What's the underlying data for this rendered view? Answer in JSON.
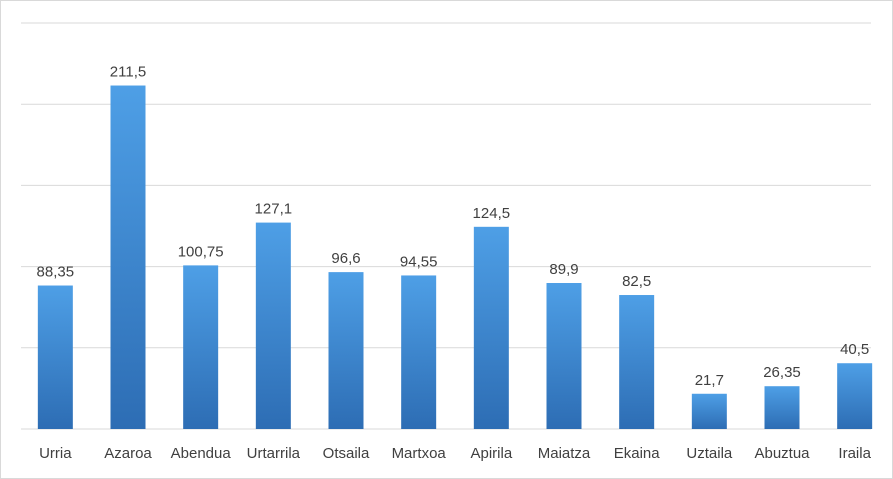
{
  "chart_data": {
    "type": "bar",
    "categories": [
      "Urria",
      "Azaroa",
      "Abendua",
      "Urtarrila",
      "Otsaila",
      "Martxoa",
      "Apirila",
      "Maiatza",
      "Ekaina",
      "Uztaila",
      "Abuztua",
      "Iraila"
    ],
    "values": [
      88.35,
      211.5,
      100.75,
      127.1,
      96.6,
      94.55,
      124.5,
      89.9,
      82.5,
      21.7,
      26.35,
      40.5
    ],
    "value_labels": [
      "88,35",
      "211,5",
      "100,75",
      "127,1",
      "96,6",
      "94,55",
      "124,5",
      "89,9",
      "82,5",
      "21,7",
      "26,35",
      "40,5"
    ],
    "title": "",
    "xlabel": "",
    "ylabel": "",
    "ylim": [
      0,
      250
    ],
    "grid": true,
    "bar_color_top": "#4e9fe6",
    "bar_color_bottom": "#2d6db4",
    "grid_color": "#d9d9d9"
  }
}
